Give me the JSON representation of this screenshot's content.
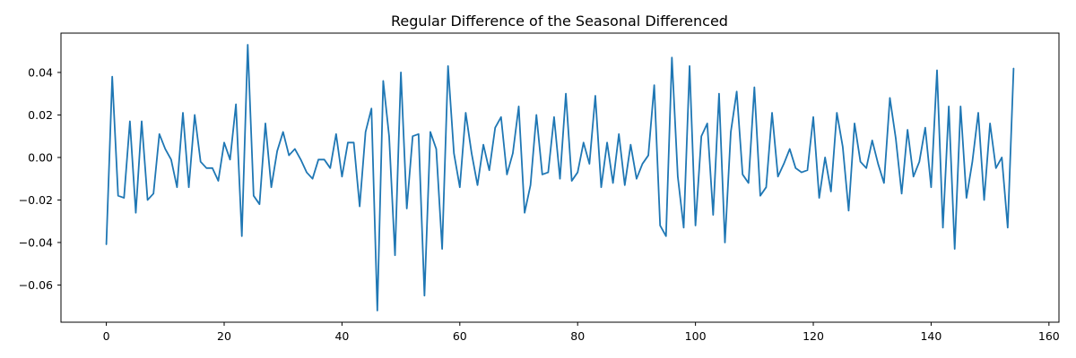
{
  "chart_data": {
    "type": "line",
    "title": "Regular Difference of the Seasonal Differenced",
    "xlabel": "",
    "ylabel": "",
    "xlim": [
      -7.7,
      161.7
    ],
    "ylim": [
      -0.0775,
      0.0585
    ],
    "xticks": [
      0,
      20,
      40,
      60,
      80,
      100,
      120,
      140,
      160
    ],
    "xtick_labels": [
      "0",
      "20",
      "40",
      "60",
      "80",
      "100",
      "120",
      "140",
      "160"
    ],
    "yticks": [
      -0.06,
      -0.04,
      -0.02,
      0.0,
      0.02,
      0.04
    ],
    "ytick_labels": [
      "−0.06",
      "−0.04",
      "−0.02",
      "0.00",
      "0.02",
      "0.04"
    ],
    "grid": false,
    "legend": "none",
    "series": [
      {
        "color": "#1f77b4",
        "x_start": 0,
        "x_step": 1,
        "values": [
          -0.041,
          0.038,
          -0.018,
          -0.019,
          0.017,
          -0.026,
          0.017,
          -0.02,
          -0.017,
          0.011,
          0.004,
          -0.001,
          -0.014,
          0.021,
          -0.014,
          0.02,
          -0.002,
          -0.005,
          -0.005,
          -0.011,
          0.007,
          -0.001,
          0.025,
          -0.037,
          0.053,
          -0.018,
          -0.022,
          0.016,
          -0.014,
          0.003,
          0.012,
          0.001,
          0.004,
          -0.001,
          -0.007,
          -0.01,
          -0.001,
          -0.001,
          -0.005,
          0.011,
          -0.009,
          0.007,
          0.007,
          -0.023,
          0.012,
          0.023,
          -0.072,
          0.036,
          0.01,
          -0.046,
          0.04,
          -0.024,
          0.01,
          0.011,
          -0.065,
          0.012,
          0.004,
          -0.043,
          0.043,
          0.002,
          -0.014,
          0.021,
          0.002,
          -0.013,
          0.006,
          -0.006,
          0.014,
          0.019,
          -0.008,
          0.002,
          0.024,
          -0.026,
          -0.013,
          0.02,
          -0.008,
          -0.007,
          0.019,
          -0.01,
          0.03,
          -0.011,
          -0.007,
          0.007,
          -0.003,
          0.029,
          -0.014,
          0.007,
          -0.012,
          0.011,
          -0.013,
          0.006,
          -0.01,
          -0.003,
          0.001,
          0.034,
          -0.032,
          -0.037,
          0.047,
          -0.009,
          -0.033,
          0.043,
          -0.032,
          0.01,
          0.016,
          -0.027,
          0.03,
          -0.04,
          0.012,
          0.031,
          -0.008,
          -0.012,
          0.033,
          -0.018,
          -0.014,
          0.021,
          -0.009,
          -0.003,
          0.004,
          -0.005,
          -0.007,
          -0.006,
          0.019,
          -0.019,
          0.0,
          -0.016,
          0.021,
          0.005,
          -0.025,
          0.016,
          -0.002,
          -0.005,
          0.008,
          -0.003,
          -0.012,
          0.028,
          0.009,
          -0.017,
          0.013,
          -0.009,
          -0.002,
          0.014,
          -0.014,
          0.041,
          -0.033,
          0.024,
          -0.043,
          0.024,
          -0.019,
          -0.002,
          0.021,
          -0.02,
          0.016,
          -0.005,
          0.0,
          -0.033,
          0.042
        ]
      }
    ]
  }
}
